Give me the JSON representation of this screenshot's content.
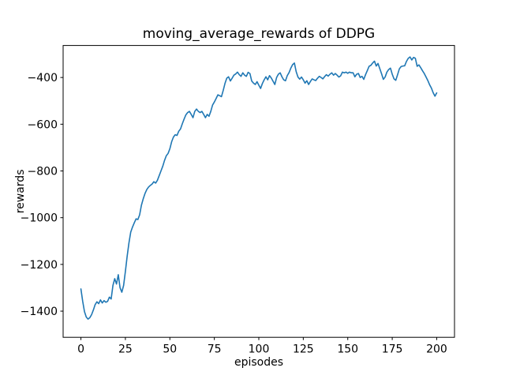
{
  "window": {
    "background_color": "#ffffff"
  },
  "chart_data": {
    "type": "line",
    "title": "moving_average_rewards of DDPG",
    "xlabel": "episodes",
    "ylabel": "rewards",
    "xlim": [
      -10,
      210
    ],
    "ylim": [
      -1512,
      -263
    ],
    "xticks": [
      0,
      25,
      50,
      75,
      100,
      125,
      150,
      175,
      200
    ],
    "xtick_labels": [
      "0",
      "25",
      "50",
      "75",
      "100",
      "125",
      "150",
      "175",
      "200"
    ],
    "yticks": [
      -400,
      -600,
      -800,
      -1000,
      -1200,
      -1400
    ],
    "ytick_labels": [
      "−400",
      "−600",
      "−800",
      "−1000",
      "−1200",
      "−1400"
    ],
    "grid": false,
    "legend": null,
    "line_color": "#1f77b4",
    "series": [
      {
        "name": "moving_average_rewards",
        "x_from_index": true,
        "x_start": 0,
        "x_step": 1,
        "values": [
          -1305,
          -1358,
          -1402,
          -1425,
          -1434,
          -1428,
          -1415,
          -1395,
          -1372,
          -1360,
          -1368,
          -1352,
          -1365,
          -1355,
          -1362,
          -1358,
          -1340,
          -1348,
          -1290,
          -1261,
          -1284,
          -1244,
          -1300,
          -1319,
          -1290,
          -1230,
          -1165,
          -1108,
          -1062,
          -1040,
          -1022,
          -1005,
          -1008,
          -988,
          -947,
          -920,
          -897,
          -880,
          -869,
          -862,
          -856,
          -846,
          -852,
          -840,
          -820,
          -800,
          -780,
          -755,
          -735,
          -725,
          -705,
          -675,
          -655,
          -645,
          -648,
          -630,
          -620,
          -598,
          -578,
          -560,
          -550,
          -545,
          -558,
          -572,
          -545,
          -535,
          -545,
          -550,
          -545,
          -558,
          -572,
          -558,
          -566,
          -545,
          -518,
          -505,
          -490,
          -474,
          -478,
          -482,
          -455,
          -425,
          -403,
          -397,
          -415,
          -403,
          -390,
          -385,
          -377,
          -388,
          -395,
          -380,
          -390,
          -395,
          -378,
          -383,
          -415,
          -424,
          -430,
          -418,
          -433,
          -447,
          -426,
          -410,
          -397,
          -410,
          -392,
          -402,
          -416,
          -430,
          -400,
          -386,
          -380,
          -397,
          -410,
          -414,
          -392,
          -379,
          -360,
          -345,
          -338,
          -375,
          -398,
          -407,
          -398,
          -410,
          -424,
          -414,
          -430,
          -417,
          -406,
          -410,
          -413,
          -403,
          -395,
          -400,
          -406,
          -396,
          -388,
          -394,
          -386,
          -380,
          -390,
          -383,
          -390,
          -398,
          -393,
          -377,
          -380,
          -377,
          -382,
          -377,
          -380,
          -380,
          -397,
          -386,
          -383,
          -400,
          -395,
          -408,
          -388,
          -370,
          -352,
          -348,
          -338,
          -330,
          -351,
          -340,
          -362,
          -384,
          -408,
          -398,
          -377,
          -366,
          -360,
          -386,
          -406,
          -412,
          -388,
          -363,
          -353,
          -351,
          -350,
          -331,
          -318,
          -312,
          -325,
          -314,
          -318,
          -352,
          -346,
          -358,
          -371,
          -383,
          -398,
          -413,
          -431,
          -445,
          -465,
          -480,
          -466
        ]
      }
    ]
  }
}
